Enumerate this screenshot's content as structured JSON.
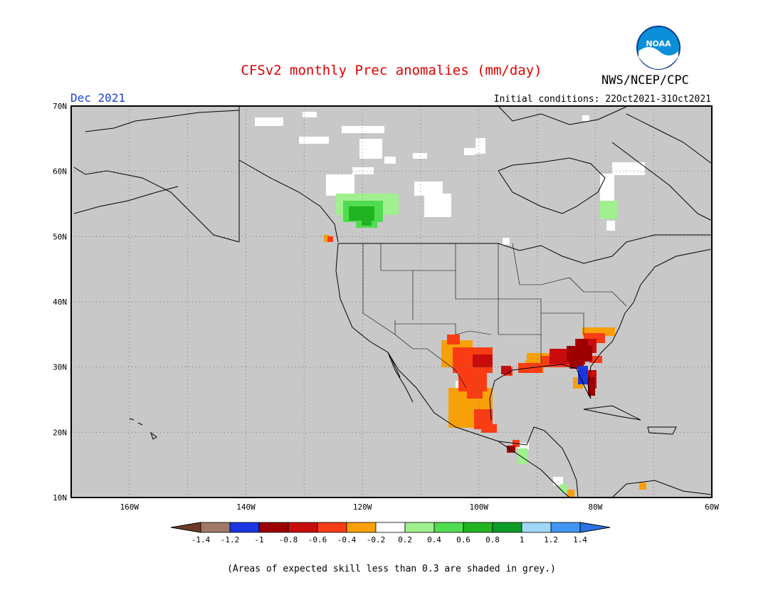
{
  "header": {
    "title": "CFSv2 monthly Prec anomalies (mm/day)",
    "org": "NWS/NCEP/CPC",
    "month": "Dec 2021",
    "initial_conditions": "Initial conditions: 22Oct2021-31Oct2021",
    "logo_text": "NOAA"
  },
  "map": {
    "lat_labels": [
      "70N",
      "60N",
      "50N",
      "40N",
      "30N",
      "20N",
      "10N"
    ],
    "lon_labels": [
      "160W",
      "140W",
      "120W",
      "100W",
      "80W",
      "60W"
    ],
    "lat_range": [
      10,
      70
    ],
    "lon_range": [
      -170,
      -60
    ],
    "land_color": "#c8c8c8",
    "grid": true
  },
  "colorbar": {
    "labels": [
      "-1.4",
      "-1.2",
      "-1",
      "-0.8",
      "-0.6",
      "-0.4",
      "-0.2",
      "0.2",
      "0.4",
      "0.6",
      "0.8",
      "1",
      "1.2",
      "1.4"
    ],
    "colors": [
      "#6e3a28",
      "#a07868",
      "#1c34e0",
      "#9c0000",
      "#c80c0c",
      "#fa3c14",
      "#f8a00a",
      "#ffffff",
      "#a0f090",
      "#50dc50",
      "#20b420",
      "#0c9c28",
      "#a0d8f8",
      "#4096f0",
      "#2a74e8"
    ]
  },
  "footnote": "(Areas of expected skill less than 0.3 are shaded in grey.)"
}
